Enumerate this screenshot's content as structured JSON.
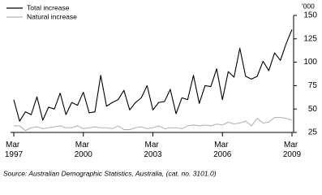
{
  "chart_data": {
    "type": "line",
    "y_label": "'000",
    "source": "Source: Australian Demographic Statistics, Australia, (cat. no. 3101.0)",
    "categories": [
      "Mar 1997",
      null,
      null,
      null,
      null,
      null,
      null,
      null,
      null,
      null,
      null,
      null,
      "Mar 2000",
      null,
      null,
      null,
      null,
      null,
      null,
      null,
      null,
      null,
      null,
      null,
      "Mar 2003",
      null,
      null,
      null,
      null,
      null,
      null,
      null,
      null,
      null,
      null,
      null,
      "Mar 2006",
      null,
      null,
      null,
      null,
      null,
      null,
      null,
      null,
      null,
      null,
      null,
      "Mar 2009"
    ],
    "series": [
      {
        "name": "Total increase",
        "color": "#000000",
        "values": [
          60,
          37,
          47,
          44,
          63,
          38,
          52,
          50,
          67,
          44,
          57,
          54,
          68,
          46,
          47,
          86,
          53,
          57,
          60,
          70,
          49,
          57,
          62,
          75,
          49,
          57,
          58,
          71,
          45,
          62,
          60,
          86,
          56,
          75,
          74,
          93,
          60,
          90,
          84,
          115,
          85,
          82,
          85,
          101,
          91,
          110,
          102,
          120,
          135
        ]
      },
      {
        "name": "Natural increase",
        "color": "#b4b4b4",
        "values": [
          32,
          32,
          27,
          30,
          31,
          29,
          30,
          31,
          32,
          30,
          30,
          32,
          29,
          30,
          31,
          30,
          30,
          29,
          32,
          28,
          28,
          30,
          31,
          29,
          30,
          32,
          29,
          30,
          30,
          29,
          32,
          33,
          32,
          33,
          32,
          34,
          33,
          36,
          34,
          35,
          37,
          32,
          40,
          35,
          36,
          41,
          41,
          40,
          38
        ]
      }
    ],
    "ylim": [
      25,
      150
    ],
    "yticks": [
      25,
      50,
      75,
      100,
      125,
      150
    ],
    "grid": false,
    "legend": "top-left"
  }
}
